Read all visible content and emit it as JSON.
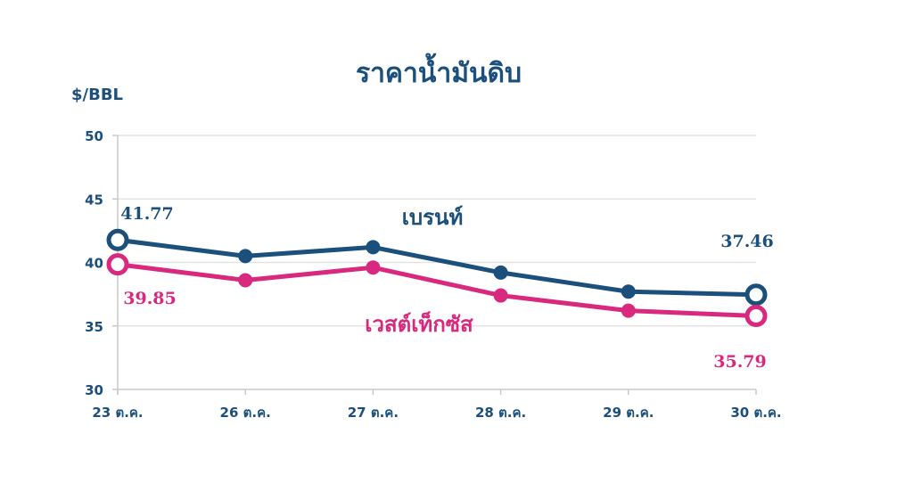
{
  "chart_data": {
    "type": "line",
    "title": "ราคาน้ำมันดิบ",
    "ylabel": "$/BBL",
    "xlabel": "",
    "categories": [
      "23 ต.ค.",
      "26 ต.ค.",
      "27 ต.ค.",
      "28 ต.ค.",
      "29 ต.ค.",
      "30 ต.ค."
    ],
    "ylim": [
      30,
      50
    ],
    "yticks": [
      30,
      35,
      40,
      45,
      50
    ],
    "grid": "horizontal",
    "legend": "inline labels",
    "series": [
      {
        "name": "เบรนท์",
        "color": "#1b4f7c",
        "values": [
          41.77,
          40.5,
          41.2,
          39.2,
          37.7,
          37.46
        ],
        "data_labels": [
          {
            "index": 0,
            "text": "41.77"
          },
          {
            "index": 5,
            "text": "37.46"
          }
        ]
      },
      {
        "name": "เวสต์เท็กซัส",
        "color": "#d9297f",
        "values": [
          39.85,
          38.6,
          39.6,
          37.4,
          36.2,
          35.79
        ],
        "data_labels": [
          {
            "index": 0,
            "text": "39.85"
          },
          {
            "index": 5,
            "text": "35.79"
          }
        ]
      }
    ]
  }
}
